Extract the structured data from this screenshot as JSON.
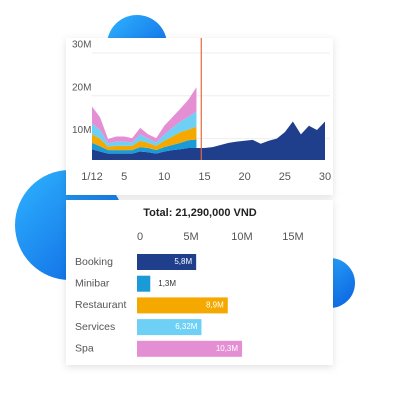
{
  "chart_data": [
    {
      "type": "stacked-area",
      "x": [
        1,
        2,
        3,
        4,
        5,
        6,
        7,
        8,
        9,
        10,
        11,
        12,
        13,
        14,
        15,
        16,
        17,
        18,
        19,
        20,
        21,
        22,
        23,
        24,
        25,
        26,
        27,
        28,
        29,
        30
      ],
      "xlim": [
        1,
        30
      ],
      "xticks": [
        {
          "value": 1,
          "label": "1/12"
        },
        5,
        10,
        15,
        20,
        25,
        30
      ],
      "ylim": [
        5,
        31
      ],
      "yticks": [
        {
          "value": 10,
          "label": "10M"
        },
        {
          "value": 20,
          "label": "20M"
        },
        {
          "value": 30,
          "label": "30M"
        }
      ],
      "grid": true,
      "highlight_x": 14.6,
      "highlight_color": "#e8663d",
      "series": [
        {
          "name": "Booking",
          "color": "#1f3f8c",
          "values": [
            7.5,
            7,
            6.5,
            6.5,
            6.5,
            6.5,
            7,
            6.8,
            6.5,
            7,
            7.3,
            7.5,
            7.8,
            7.8,
            7.8,
            8,
            8.5,
            9,
            9.3,
            9.5,
            9.7,
            8.8,
            9.5,
            10,
            11.5,
            14,
            11,
            13,
            12,
            14
          ]
        },
        {
          "name": "Minibar",
          "color": "#1a9ad6",
          "values": [
            1.5,
            1.2,
            0.8,
            0.8,
            0.8,
            0.8,
            1,
            1,
            0.8,
            1,
            1.2,
            1.5,
            1.8,
            2,
            null,
            null,
            null,
            null,
            null,
            null,
            null,
            null,
            null,
            null,
            null,
            null,
            null,
            null,
            null,
            null
          ]
        },
        {
          "name": "Restaurant",
          "color": "#f5a800",
          "values": [
            2,
            1.8,
            0.8,
            1,
            1,
            1,
            1.5,
            1.2,
            1,
            1.5,
            2,
            2.5,
            2.5,
            3,
            null,
            null,
            null,
            null,
            null,
            null,
            null,
            null,
            null,
            null,
            null,
            null,
            null,
            null,
            null,
            null
          ]
        },
        {
          "name": "Services",
          "color": "#6fd0f6",
          "values": [
            2.5,
            2,
            0.8,
            1,
            1,
            0.8,
            1.5,
            1,
            0.8,
            1.5,
            2,
            2.5,
            3,
            3.5,
            null,
            null,
            null,
            null,
            null,
            null,
            null,
            null,
            null,
            null,
            null,
            null,
            null,
            null,
            null,
            null
          ]
        },
        {
          "name": "Spa",
          "color": "#e48fd4",
          "values": [
            4,
            3,
            1,
            1.2,
            1.2,
            1,
            1.5,
            1,
            1,
            2,
            2.5,
            3,
            4,
            5.7,
            null,
            null,
            null,
            null,
            null,
            null,
            null,
            null,
            null,
            null,
            null,
            null,
            null,
            null,
            null,
            null
          ]
        }
      ]
    },
    {
      "type": "hbar",
      "title": "Total: 21,290,000 VND",
      "categories": [
        "Booking",
        "Minibar",
        "Restaurant",
        "Services",
        "Spa"
      ],
      "values": [
        5.8,
        1.3,
        8.9,
        6.32,
        10.3
      ],
      "value_labels": [
        "5,8M",
        "1,3M",
        "8,9M",
        "6,32M",
        "10,3M"
      ],
      "colors": [
        "#1f3f8c",
        "#1a9ad6",
        "#f5a800",
        "#6fd0f6",
        "#e48fd4"
      ],
      "xlim": [
        0,
        18
      ],
      "xticks": [
        0,
        {
          "value": 5,
          "label": "5M"
        },
        {
          "value": 10,
          "label": "10M"
        },
        {
          "value": 15,
          "label": "15M"
        }
      ]
    }
  ]
}
